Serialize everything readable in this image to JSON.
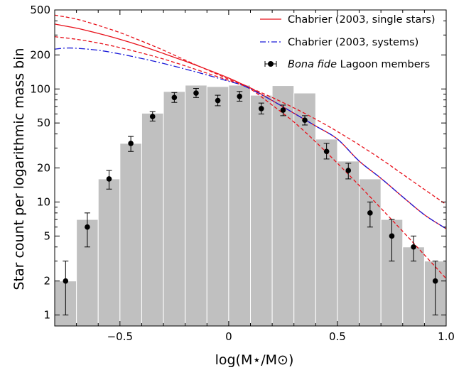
{
  "chart_data": {
    "type": "bar",
    "xlabel": "log(M⋆/M⊙)",
    "ylabel": "Star count per logarithmic mass bin",
    "xlim": [
      -0.8,
      1.0
    ],
    "ylim": [
      0.8,
      500
    ],
    "yscale": "log",
    "grid": false,
    "legend_position": "top-right",
    "xticks": [
      {
        "value": -0.5,
        "label": "−0.5"
      },
      {
        "value": 0,
        "label": "0"
      },
      {
        "value": 0.5,
        "label": "0.5"
      },
      {
        "value": 1.0,
        "label": "1.0"
      }
    ],
    "yticks": [
      {
        "value": 1,
        "label": "1"
      },
      {
        "value": 2,
        "label": "2"
      },
      {
        "value": 5,
        "label": "5"
      },
      {
        "value": 10,
        "label": "10"
      },
      {
        "value": 20,
        "label": "20"
      },
      {
        "value": 50,
        "label": "50"
      },
      {
        "value": 100,
        "label": "100"
      },
      {
        "value": 200,
        "label": "200"
      },
      {
        "value": 500,
        "label": "500"
      }
    ],
    "histogram": {
      "color": "#c0c0c0",
      "bin_width": 0.1,
      "bins": [
        {
          "x": -0.75,
          "y": 2
        },
        {
          "x": -0.65,
          "y": 7
        },
        {
          "x": -0.55,
          "y": 16
        },
        {
          "x": -0.45,
          "y": 33
        },
        {
          "x": -0.35,
          "y": 61
        },
        {
          "x": -0.25,
          "y": 95
        },
        {
          "x": -0.15,
          "y": 108
        },
        {
          "x": -0.05,
          "y": 105
        },
        {
          "x": 0.05,
          "y": 108
        },
        {
          "x": 0.15,
          "y": 88
        },
        {
          "x": 0.25,
          "y": 107
        },
        {
          "x": 0.35,
          "y": 92
        },
        {
          "x": 0.45,
          "y": 36
        },
        {
          "x": 0.55,
          "y": 23
        },
        {
          "x": 0.65,
          "y": 16
        },
        {
          "x": 0.75,
          "y": 7
        },
        {
          "x": 0.85,
          "y": 4
        },
        {
          "x": 0.95,
          "y": 3
        }
      ]
    },
    "members": {
      "name": "Lagoon members",
      "name_prefix": "Bona fide",
      "points": [
        {
          "x": -0.75,
          "y": 2,
          "lo": 1,
          "hi": 3
        },
        {
          "x": -0.65,
          "y": 6,
          "lo": 4,
          "hi": 8
        },
        {
          "x": -0.55,
          "y": 16,
          "lo": 13,
          "hi": 19
        },
        {
          "x": -0.45,
          "y": 33,
          "lo": 28,
          "hi": 38
        },
        {
          "x": -0.35,
          "y": 57,
          "lo": 52,
          "hi": 63
        },
        {
          "x": -0.25,
          "y": 84,
          "lo": 76,
          "hi": 93
        },
        {
          "x": -0.15,
          "y": 92,
          "lo": 84,
          "hi": 101
        },
        {
          "x": -0.05,
          "y": 79,
          "lo": 71,
          "hi": 88
        },
        {
          "x": 0.05,
          "y": 86,
          "lo": 78,
          "hi": 95
        },
        {
          "x": 0.15,
          "y": 67,
          "lo": 60,
          "hi": 75
        },
        {
          "x": 0.25,
          "y": 65,
          "lo": 58,
          "hi": 72
        },
        {
          "x": 0.35,
          "y": 53,
          "lo": 48,
          "hi": 58
        },
        {
          "x": 0.45,
          "y": 28,
          "lo": 24,
          "hi": 33
        },
        {
          "x": 0.55,
          "y": 19,
          "lo": 16,
          "hi": 22
        },
        {
          "x": 0.65,
          "y": 8,
          "lo": 6,
          "hi": 10
        },
        {
          "x": 0.75,
          "y": 5,
          "lo": 3,
          "hi": 7
        },
        {
          "x": 0.85,
          "y": 4,
          "lo": 3,
          "hi": 5
        },
        {
          "x": 0.95,
          "y": 2,
          "lo": 1,
          "hi": 3
        }
      ]
    },
    "series": [
      {
        "name": "Chabrier (2003, single stars)",
        "color": "#e8101a",
        "style": "solid",
        "x": [
          -0.8,
          -0.7,
          -0.6,
          -0.5,
          -0.4,
          -0.3,
          -0.2,
          -0.1,
          0.0,
          0.05,
          0.1,
          0.2,
          0.3,
          0.4,
          0.5,
          0.6,
          0.7,
          0.8,
          0.9,
          1.0
        ],
        "y": [
          375,
          345,
          310,
          275,
          240,
          206,
          176,
          149,
          125,
          113,
          102,
          79,
          61,
          47,
          36,
          23,
          16.2,
          11.1,
          7.7,
          5.8
        ]
      },
      {
        "name": "",
        "color": "#e8101a",
        "style": "dashed",
        "x": [
          -0.8,
          -0.7,
          -0.6,
          -0.5,
          -0.4,
          -0.3,
          -0.2,
          -0.1,
          0.0,
          0.05,
          0.1,
          0.2,
          0.3,
          0.4,
          0.5,
          0.6,
          0.7,
          0.8,
          0.9,
          1.0
        ],
        "y": [
          450,
          415,
          365,
          315,
          265,
          220,
          180,
          148,
          122,
          112,
          102,
          84,
          68,
          54,
          42,
          32,
          24,
          17.6,
          12.9,
          9.5
        ]
      },
      {
        "name": "",
        "color": "#e8101a",
        "style": "dashed",
        "x": [
          -0.8,
          -0.7,
          -0.6,
          -0.5,
          -0.4,
          -0.3,
          -0.2,
          -0.1,
          0.0,
          0.05,
          0.1,
          0.2,
          0.3,
          0.4,
          0.5,
          0.6,
          0.7,
          0.8,
          0.9,
          1.0
        ],
        "y": [
          290,
          275,
          255,
          232,
          208,
          184,
          160,
          138,
          119,
          110,
          100,
          72,
          51,
          34,
          22,
          14,
          8.8,
          5.5,
          3.4,
          2.1
        ]
      },
      {
        "name": "Chabrier (2003, systems)",
        "color": "#1a1ad8",
        "style": "dashdot",
        "x": [
          -0.8,
          -0.75,
          -0.7,
          -0.6,
          -0.5,
          -0.4,
          -0.3,
          -0.2,
          -0.1,
          0.0,
          0.05,
          0.1,
          0.2,
          0.3,
          0.4,
          0.5,
          0.6,
          0.7,
          0.8,
          0.9,
          1.0
        ],
        "y": [
          225,
          230,
          229,
          220,
          204,
          186,
          168,
          150,
          133,
          117,
          110,
          100,
          79,
          61,
          47,
          36,
          23,
          16.2,
          11.1,
          7.7,
          5.8
        ]
      }
    ]
  }
}
